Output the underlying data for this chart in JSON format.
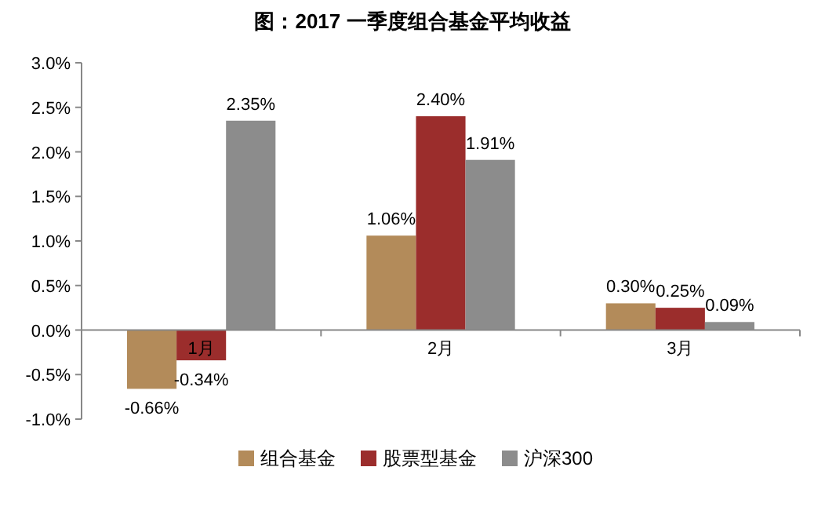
{
  "chart_data": {
    "type": "bar",
    "title": "图：2017 一季度组合基金平均收益",
    "categories": [
      "1月",
      "2月",
      "3月"
    ],
    "series": [
      {
        "name": "组合基金",
        "color": "#b38b5a",
        "values": [
          -0.66,
          1.06,
          0.3
        ],
        "value_labels": [
          "-0.66%",
          "1.06%",
          "0.30%"
        ]
      },
      {
        "name": "股票型基金",
        "color": "#9b2d2c",
        "values": [
          -0.34,
          2.4,
          0.25
        ],
        "value_labels": [
          "-0.34%",
          "2.40%",
          "0.25%"
        ]
      },
      {
        "name": "沪深300",
        "color": "#8c8c8c",
        "values": [
          2.35,
          1.91,
          0.09
        ],
        "value_labels": [
          "2.35%",
          "1.91%",
          "0.09%"
        ]
      }
    ],
    "ylim": [
      -1,
      3
    ],
    "yticks": [
      {
        "value": -1,
        "label": "-1.0%"
      },
      {
        "value": -0.5,
        "label": "-0.5%"
      },
      {
        "value": 0,
        "label": "0.0%"
      },
      {
        "value": 0.5,
        "label": "0.5%"
      },
      {
        "value": 1,
        "label": "1.0%"
      },
      {
        "value": 1.5,
        "label": "1.5%"
      },
      {
        "value": 2,
        "label": "2.0%"
      },
      {
        "value": 2.5,
        "label": "2.5%"
      },
      {
        "value": 3,
        "label": "3.0%"
      }
    ],
    "grid": false,
    "legend": "bottom"
  }
}
